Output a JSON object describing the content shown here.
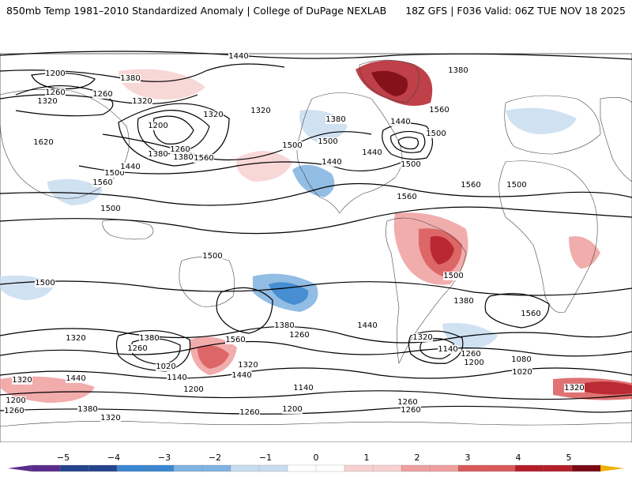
{
  "header": {
    "title_left": "850mb Temp 1981–2010 Standardized Anomaly | College of DuPage NEXLAB",
    "title_right": "18Z GFS | F036 Valid: 06Z TUE NOV 18 2025"
  },
  "map": {
    "projection": "equirectangular-global",
    "anomaly_colors": {
      "neg5": "#5a2d8c",
      "neg4": "#24448c",
      "neg3": "#3a86d0",
      "neg2": "#7fb2e0",
      "neg1": "#c8dcf0",
      "zero": "#ffffff",
      "pos1": "#f7d0d0",
      "pos2": "#ee9e9e",
      "pos3": "#d9595a",
      "pos4": "#b41e28",
      "pos5": "#7a0a14",
      "over": "#f0b000"
    },
    "contour_labels": [
      "1440",
      "1380",
      "1320",
      "1260",
      "1200",
      "1320",
      "1260",
      "1200",
      "1260",
      "1380",
      "1620",
      "1560",
      "1500",
      "1440",
      "1380",
      "1320",
      "1500",
      "1560",
      "1500",
      "1440",
      "1440",
      "1380",
      "1320",
      "1560",
      "1440",
      "1500",
      "1500",
      "1560",
      "1500",
      "1380",
      "1500",
      "1500",
      "1500",
      "1560",
      "1500",
      "1440",
      "1380",
      "1320",
      "1140",
      "1260",
      "1200",
      "1080",
      "1020",
      "1560",
      "1380",
      "1260",
      "1320",
      "1560",
      "1440",
      "1320",
      "1380",
      "1260",
      "1020",
      "1140",
      "1200",
      "1440",
      "1320",
      "1200",
      "1260",
      "1380",
      "1320",
      "1260",
      "1200",
      "1140",
      "1260",
      "1260",
      "1320"
    ]
  },
  "colorbar": {
    "ticks": [
      "−5",
      "−4",
      "−3",
      "−2",
      "−1",
      "0",
      "1",
      "2",
      "3",
      "4",
      "5"
    ]
  }
}
